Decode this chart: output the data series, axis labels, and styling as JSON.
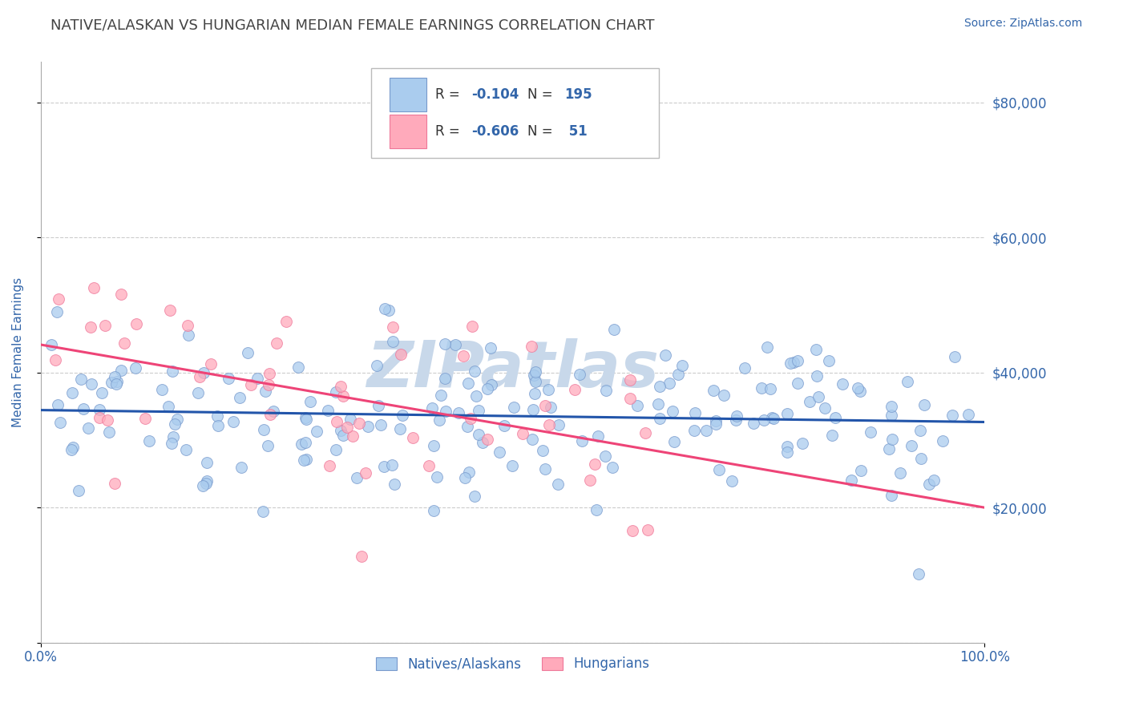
{
  "title": "NATIVE/ALASKAN VS HUNGARIAN MEDIAN FEMALE EARNINGS CORRELATION CHART",
  "source_text": "Source: ZipAtlas.com",
  "ylabel": "Median Female Earnings",
  "y_ticks": [
    0,
    20000,
    40000,
    60000,
    80000
  ],
  "y_tick_labels": [
    "",
    "$20,000",
    "$40,000",
    "$60,000",
    "$80,000"
  ],
  "ylim": [
    0,
    86000
  ],
  "xlim": [
    0,
    100
  ],
  "blue_R": -0.104,
  "blue_N": 195,
  "pink_R": -0.606,
  "pink_N": 51,
  "blue_marker_color": "#aaccee",
  "blue_edge_color": "#7799cc",
  "pink_marker_color": "#ffaabb",
  "pink_edge_color": "#ee7799",
  "trend_blue": "#2255aa",
  "trend_pink": "#ee4477",
  "watermark": "ZIPatlas",
  "watermark_color": "#c8d8ea",
  "title_color": "#444444",
  "title_fontsize": 13,
  "axis_label_color": "#3366aa",
  "tick_label_color": "#3366aa",
  "grid_color": "#cccccc",
  "legend_text_color": "#333333",
  "legend_r_val_color": "#cc2244",
  "legend_n_val_color": "#3366aa",
  "scatter_size": 100,
  "blue_mean_y": 34000,
  "blue_std_y": 6500,
  "pink_mean_y": 38000,
  "pink_std_y": 10000,
  "blue_x_min": 1,
  "blue_x_max": 99,
  "pink_x_min": 0.5,
  "pink_x_max": 65
}
